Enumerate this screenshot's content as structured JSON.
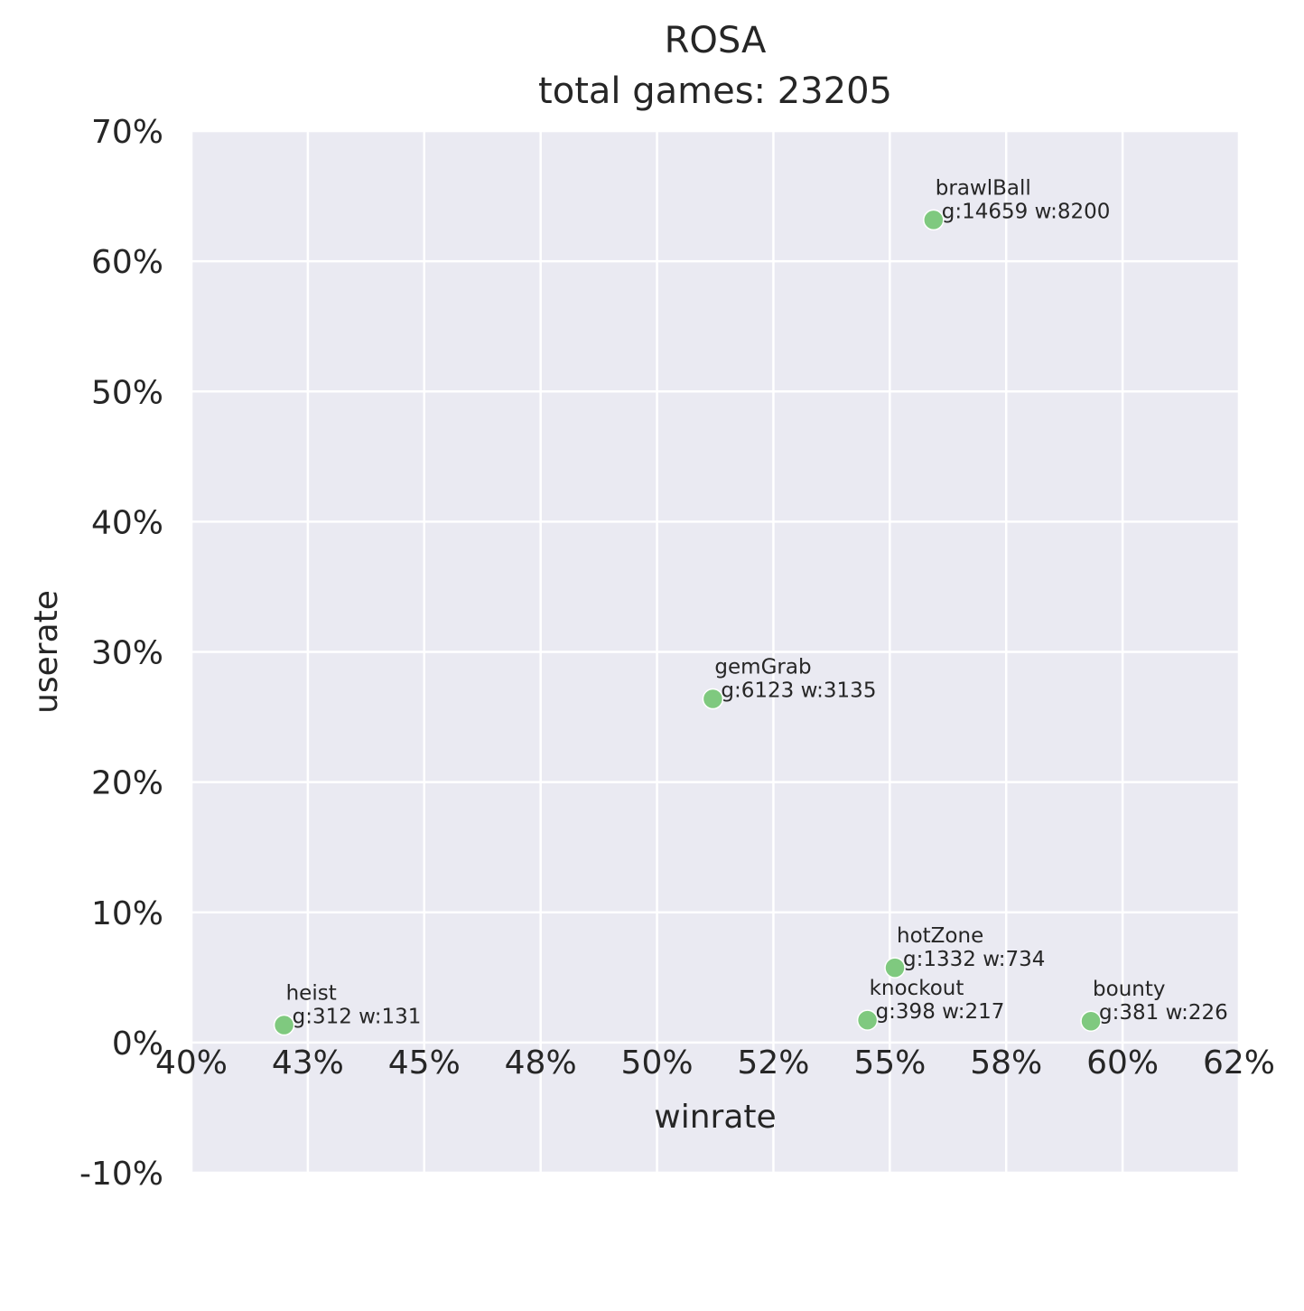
{
  "chart_data": {
    "type": "scatter",
    "title": "ROSA",
    "subtitle": "total games: 23205",
    "xlabel": "winrate",
    "ylabel": "userate",
    "xlim": [
      0.4,
      0.625
    ],
    "ylim": [
      -0.1,
      0.7
    ],
    "x_tick_values": [
      0.4,
      0.425,
      0.45,
      0.475,
      0.5,
      0.525,
      0.55,
      0.575,
      0.6,
      0.625
    ],
    "x_tick_labels": [
      "40%",
      "43%",
      "45%",
      "48%",
      "50%",
      "52%",
      "55%",
      "58%",
      "60%",
      "62%"
    ],
    "y_tick_values": [
      -0.1,
      0.0,
      0.1,
      0.2,
      0.3,
      0.4,
      0.5,
      0.6,
      0.7
    ],
    "y_tick_labels": [
      "-10%",
      "0%",
      "10%",
      "20%",
      "30%",
      "40%",
      "50%",
      "60%",
      "70%"
    ],
    "grid": true,
    "background_color": "#eaeaf2",
    "grid_color": "#ffffff",
    "marker_color": "#7fc97f",
    "points": [
      {
        "name": "brawlBall",
        "label": "g:14659 w:8200",
        "x": 0.5594,
        "y": 0.6317
      },
      {
        "name": "gemGrab",
        "label": "g:6123 w:3135",
        "x": 0.512,
        "y": 0.2639
      },
      {
        "name": "hotZone",
        "label": "g:1332 w:734",
        "x": 0.5511,
        "y": 0.0574
      },
      {
        "name": "knockout",
        "label": "g:398 w:217",
        "x": 0.5452,
        "y": 0.0172
      },
      {
        "name": "bounty",
        "label": "g:381 w:226",
        "x": 0.5932,
        "y": 0.0164
      },
      {
        "name": "heist",
        "label": "g:312 w:131",
        "x": 0.4199,
        "y": 0.0134
      }
    ]
  }
}
